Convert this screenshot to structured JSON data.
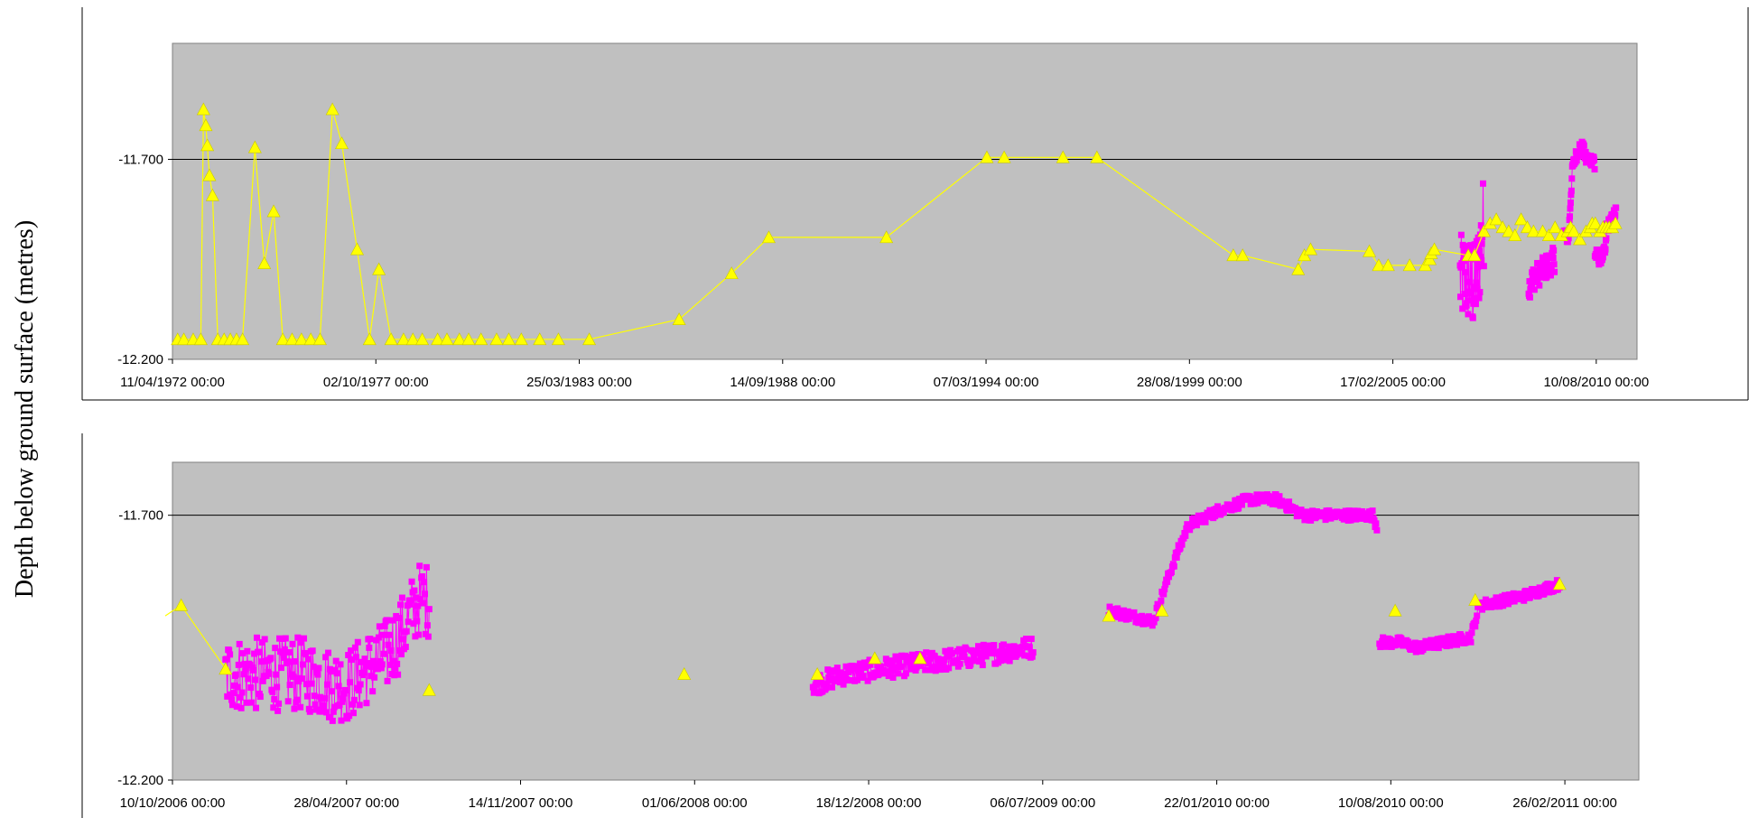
{
  "ylabel": "Depth below ground surface (metres)",
  "colors": {
    "plot_bg": "#c0c0c0",
    "manual": "#ffff00",
    "logger": "#ff00ff",
    "grid": "#000000"
  },
  "chart_data": [
    {
      "type": "line",
      "ylim": [
        -12.2,
        -11.41
      ],
      "y_ticks": [
        -11.7,
        -12.2
      ],
      "y_tick_labels": [
        "-11.700",
        "-12.200"
      ],
      "xlim": [
        "1972-04-11",
        "2011-09-15"
      ],
      "x_ticks": [
        "1972-04-11",
        "1977-10-02",
        "1983-03-25",
        "1988-09-14",
        "1994-03-07",
        "1999-08-28",
        "2005-02-17",
        "2010-08-10"
      ],
      "x_tick_labels": [
        "11/04/1972 00:00",
        "02/10/1977 00:00",
        "25/03/1983 00:00",
        "14/09/1988 00:00",
        "07/03/1994 00:00",
        "28/08/1999 00:00",
        "17/02/2005 00:00",
        "10/08/2010 00:00"
      ],
      "grid": "major y at -11.700",
      "series": [
        {
          "marker": "triangle",
          "color": "#ffff00",
          "points": [
            [
              "1972-06-01",
              -12.15
            ],
            [
              "1972-08-01",
              -12.15
            ],
            [
              "1972-11-01",
              -12.15
            ],
            [
              "1973-01-15",
              -12.15
            ],
            [
              "1973-02-10",
              -11.575
            ],
            [
              "1973-03-05",
              -11.615
            ],
            [
              "1973-03-20",
              -11.665
            ],
            [
              "1973-04-10",
              -11.74
            ],
            [
              "1973-05-10",
              -11.79
            ],
            [
              "1973-07-01",
              -12.15
            ],
            [
              "1973-09-01",
              -12.15
            ],
            [
              "1973-11-01",
              -12.15
            ],
            [
              "1974-01-01",
              -12.15
            ],
            [
              "1974-03-01",
              -12.15
            ],
            [
              "1974-07-01",
              -11.67
            ],
            [
              "1974-10-01",
              -11.96
            ],
            [
              "1975-01-01",
              -11.83
            ],
            [
              "1975-04-01",
              -12.15
            ],
            [
              "1975-07-01",
              -12.15
            ],
            [
              "1975-10-01",
              -12.15
            ],
            [
              "1976-01-01",
              -12.15
            ],
            [
              "1976-04-01",
              -12.15
            ],
            [
              "1976-08-01",
              -11.575
            ],
            [
              "1976-11-01",
              -11.66
            ],
            [
              "1977-04-01",
              -11.925
            ],
            [
              "1977-08-01",
              -12.15
            ],
            [
              "1977-11-01",
              -11.975
            ],
            [
              "1978-03-01",
              -12.15
            ],
            [
              "1978-07-01",
              -12.15
            ],
            [
              "1978-10-01",
              -12.15
            ],
            [
              "1979-01-01",
              -12.15
            ],
            [
              "1979-06-01",
              -12.15
            ],
            [
              "1979-09-01",
              -12.15
            ],
            [
              "1980-01-01",
              -12.15
            ],
            [
              "1980-04-01",
              -12.15
            ],
            [
              "1980-08-01",
              -12.15
            ],
            [
              "1981-01-01",
              -12.15
            ],
            [
              "1981-05-01",
              -12.15
            ],
            [
              "1981-09-01",
              -12.15
            ],
            [
              "1982-03-01",
              -12.15
            ],
            [
              "1982-09-01",
              -12.15
            ],
            [
              "1983-07-01",
              -12.15
            ],
            [
              "1985-12-01",
              -12.1
            ],
            [
              "1987-05-01",
              -11.985
            ],
            [
              "1988-05-01",
              -11.895
            ],
            [
              "1991-07-01",
              -11.895
            ],
            [
              "1994-03-15",
              -11.695
            ],
            [
              "1994-09-01",
              -11.695
            ],
            [
              "1996-04-01",
              -11.695
            ],
            [
              "1997-03-01",
              -11.695
            ],
            [
              "2000-11-01",
              -11.94
            ],
            [
              "2001-02-01",
              -11.94
            ],
            [
              "2002-08-01",
              -11.975
            ],
            [
              "2002-10-01",
              -11.94
            ],
            [
              "2002-12-01",
              -11.925
            ],
            [
              "2004-07-01",
              -11.93
            ],
            [
              "2004-10-01",
              -11.965
            ],
            [
              "2005-01-01",
              -11.965
            ],
            [
              "2005-08-01",
              -11.965
            ],
            [
              "2006-01-01",
              -11.965
            ],
            [
              "2006-02-15",
              -11.95
            ],
            [
              "2006-03-01",
              -11.935
            ],
            [
              "2006-04-01",
              -11.925
            ],
            [
              "2007-03-01",
              -11.94
            ],
            [
              "2007-05-01",
              -11.94
            ],
            [
              "2007-08-01",
              -11.88
            ],
            [
              "2007-10-01",
              -11.86
            ],
            [
              "2007-12-01",
              -11.85
            ],
            [
              "2008-02-01",
              -11.87
            ],
            [
              "2008-04-01",
              -11.88
            ],
            [
              "2008-06-01",
              -11.89
            ],
            [
              "2008-08-01",
              -11.85
            ],
            [
              "2008-10-01",
              -11.87
            ],
            [
              "2008-12-01",
              -11.88
            ],
            [
              "2009-03-01",
              -11.88
            ],
            [
              "2009-05-01",
              -11.89
            ],
            [
              "2009-07-01",
              -11.87
            ],
            [
              "2009-09-01",
              -11.89
            ],
            [
              "2009-11-01",
              -11.88
            ],
            [
              "2009-12-01",
              -11.87
            ],
            [
              "2010-01-01",
              -11.88
            ],
            [
              "2010-03-01",
              -11.9
            ],
            [
              "2010-05-01",
              -11.88
            ],
            [
              "2010-06-15",
              -11.87
            ],
            [
              "2010-07-01",
              -11.86
            ],
            [
              "2010-08-01",
              -11.86
            ],
            [
              "2010-09-15",
              -11.88
            ],
            [
              "2010-10-15",
              -11.87
            ],
            [
              "2010-11-15",
              -11.87
            ],
            [
              "2010-12-15",
              -11.87
            ],
            [
              "2011-01-15",
              -11.87
            ],
            [
              "2011-02-15",
              -11.86
            ]
          ]
        },
        {
          "marker": "square",
          "color": "#ff00ff",
          "date_range": [
            "2006-10-10",
            "2011-03-15"
          ],
          "approx_range": [
            -12.17,
            -11.66
          ]
        }
      ]
    },
    {
      "type": "line",
      "ylim": [
        -12.2,
        -11.6
      ],
      "y_ticks": [
        -11.7,
        -12.2
      ],
      "y_tick_labels": [
        "-11.700",
        "-12.200"
      ],
      "xlim": [
        "2006-10-10",
        "2011-05-22"
      ],
      "x_ticks": [
        "2006-10-10",
        "2007-04-28",
        "2007-11-14",
        "2008-06-01",
        "2008-12-18",
        "2009-07-06",
        "2010-01-22",
        "2010-08-10",
        "2011-02-26"
      ],
      "x_tick_labels": [
        "10/10/2006 00:00",
        "28/04/2007 00:00",
        "14/11/2007 00:00",
        "01/06/2008 00:00",
        "18/12/2008 00:00",
        "06/07/2009 00:00",
        "22/01/2010 00:00",
        "10/08/2010 00:00",
        "26/02/2011 00:00"
      ],
      "grid": "major y at -11.700",
      "series": [
        {
          "marker": "triangle",
          "color": "#ffff00",
          "points": [
            [
              "2006-10-20",
              -11.87
            ],
            [
              "2006-12-10",
              -11.99
            ],
            [
              "2007-08-01",
              -12.03
            ],
            [
              "2008-05-20",
              -12.0
            ],
            [
              "2008-10-20",
              -12.0
            ],
            [
              "2008-12-25",
              -11.97
            ],
            [
              "2009-02-15",
              -11.97
            ],
            [
              "2009-09-20",
              -11.89
            ],
            [
              "2009-11-20",
              -11.88
            ],
            [
              "2010-08-15",
              -11.88
            ],
            [
              "2010-11-15",
              -11.86
            ],
            [
              "2011-02-20",
              -11.83
            ]
          ]
        },
        {
          "marker": "square",
          "color": "#ff00ff",
          "segments": [
            {
              "range": [
                "2006-12-10",
                "2007-08-01"
              ],
              "points": [
                [
                  "2006-12-10",
                  -12.0
                ],
                [
                  "2007-01-10",
                  -12.0
                ],
                [
                  "2007-02-10",
                  -12.0
                ],
                [
                  "2007-03-10",
                  -12.0
                ],
                [
                  "2007-04-10",
                  -12.02
                ],
                [
                  "2007-05-01",
                  -12.02
                ],
                [
                  "2007-05-20",
                  -11.99
                ],
                [
                  "2007-06-10",
                  -11.97
                ],
                [
                  "2007-07-01",
                  -11.92
                ],
                [
                  "2007-07-20",
                  -11.86
                ],
                [
                  "2007-08-01",
                  -11.86
                ]
              ],
              "scatter": [
                -0.07,
                0.07
              ]
            },
            {
              "range": [
                "2008-10-15",
                "2009-06-25"
              ],
              "points": [
                [
                  "2008-10-15",
                  -12.02
                ],
                [
                  "2008-11-20",
                  -12.0
                ],
                [
                  "2009-01-01",
                  -11.99
                ],
                [
                  "2009-02-15",
                  -11.98
                ],
                [
                  "2009-04-01",
                  -11.97
                ],
                [
                  "2009-05-15",
                  -11.96
                ],
                [
                  "2009-06-20",
                  -11.95
                ]
              ],
              "scatter": [
                -0.02,
                0.02
              ]
            },
            {
              "range": [
                "2009-09-20",
                "2010-07-25"
              ],
              "points": [
                [
                  "2009-09-20",
                  -11.88
                ],
                [
                  "2009-11-10",
                  -11.9
                ],
                [
                  "2009-12-01",
                  -11.8
                ],
                [
                  "2009-12-20",
                  -11.72
                ],
                [
                  "2010-01-25",
                  -11.69
                ],
                [
                  "2010-03-01",
                  -11.67
                ],
                [
                  "2010-04-01",
                  -11.67
                ],
                [
                  "2010-05-01",
                  -11.7
                ],
                [
                  "2010-06-15",
                  -11.7
                ],
                [
                  "2010-07-20",
                  -11.7
                ],
                [
                  "2010-07-25",
                  -11.72
                ]
              ],
              "scatter": [
                -0.01,
                0.01
              ]
            },
            {
              "range": [
                "2010-07-28",
                "2011-02-20"
              ],
              "points": [
                [
                  "2010-07-28",
                  -11.94
                ],
                [
                  "2010-08-20",
                  -11.94
                ],
                [
                  "2010-09-10",
                  -11.95
                ],
                [
                  "2010-10-10",
                  -11.94
                ],
                [
                  "2010-11-10",
                  -11.93
                ],
                [
                  "2010-11-20",
                  -11.87
                ],
                [
                  "2010-12-20",
                  -11.86
                ],
                [
                  "2011-01-15",
                  -11.85
                ],
                [
                  "2011-02-01",
                  -11.84
                ],
                [
                  "2011-02-20",
                  -11.83
                ]
              ],
              "scatter": [
                -0.01,
                0.01
              ]
            }
          ]
        }
      ]
    }
  ]
}
